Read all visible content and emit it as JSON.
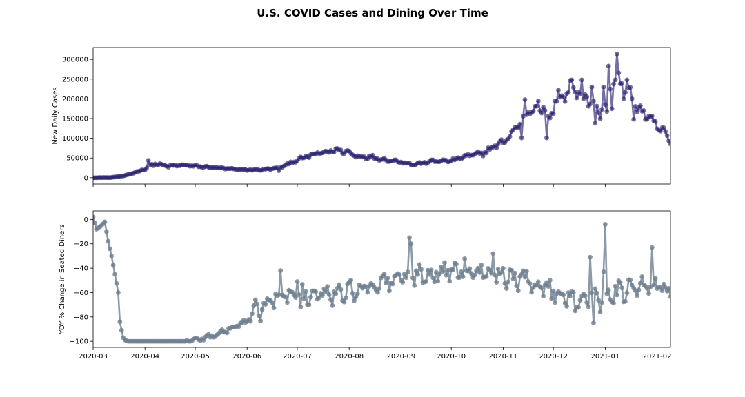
{
  "figure": {
    "title": "U.S. COVID Cases and Dining Over Time"
  },
  "chart_data": [
    {
      "type": "line",
      "ylabel": "New Daily Cases",
      "xlim": [
        "2020-03-01",
        "2021-02-09"
      ],
      "ylim": [
        -16000,
        330000
      ],
      "yticks": [
        0,
        50000,
        100000,
        150000,
        200000,
        250000,
        300000
      ],
      "ytick_labels": [
        "0",
        "50000",
        "100000",
        "150000",
        "200000",
        "250000",
        "300000"
      ],
      "xticks": [
        "2020-03-01",
        "2020-04-01",
        "2020-05-01",
        "2020-06-01",
        "2020-07-01",
        "2020-08-01",
        "2020-09-01",
        "2020-10-01",
        "2020-11-01",
        "2020-12-01",
        "2021-01-01",
        "2021-02-01"
      ],
      "show_xtick_labels": false,
      "series": [
        {
          "color": "#2b2470",
          "alpha": 0.65,
          "marker": "circle",
          "anchors": [
            [
              "2020-03-01",
              0
            ],
            [
              "2020-03-12",
              600
            ],
            [
              "2020-03-20",
              5000
            ],
            [
              "2020-03-25",
              12000
            ],
            [
              "2020-04-01",
              22000
            ],
            [
              "2020-04-04",
              30000
            ],
            [
              "2020-04-07",
              35000
            ],
            [
              "2020-04-10",
              33000
            ],
            [
              "2020-04-15",
              29000
            ],
            [
              "2020-04-24",
              32000
            ],
            [
              "2020-05-01",
              29000
            ],
            [
              "2020-05-12",
              26000
            ],
            [
              "2020-05-25",
              21000
            ],
            [
              "2020-06-01",
              20000
            ],
            [
              "2020-06-08",
              20000
            ],
            [
              "2020-06-15",
              22000
            ],
            [
              "2020-06-22",
              28000
            ],
            [
              "2020-06-26",
              36000
            ],
            [
              "2020-07-01",
              45000
            ],
            [
              "2020-07-10",
              58000
            ],
            [
              "2020-07-19",
              66000
            ],
            [
              "2020-07-24",
              70000
            ],
            [
              "2020-07-31",
              66000
            ],
            [
              "2020-08-05",
              55000
            ],
            [
              "2020-08-15",
              52000
            ],
            [
              "2020-08-25",
              44000
            ],
            [
              "2020-09-01",
              41000
            ],
            [
              "2020-09-08",
              33000
            ],
            [
              "2020-09-20",
              42000
            ],
            [
              "2020-10-01",
              43000
            ],
            [
              "2020-10-10",
              55000
            ],
            [
              "2020-10-20",
              62000
            ],
            [
              "2020-10-26",
              78000
            ],
            [
              "2020-10-31",
              88000
            ],
            [
              "2020-11-04",
              102000
            ],
            [
              "2020-11-08",
              122000
            ],
            [
              "2020-11-13",
              158000
            ],
            [
              "2020-11-17",
              172000
            ],
            [
              "2020-11-20",
              183000
            ],
            [
              "2020-11-25",
              175000
            ],
            [
              "2020-11-27",
              152000
            ],
            [
              "2020-11-30",
              158000
            ],
            [
              "2020-12-03",
              205000
            ],
            [
              "2020-12-08",
              208000
            ],
            [
              "2020-12-11",
              228000
            ],
            [
              "2020-12-16",
              225000
            ],
            [
              "2020-12-19",
              200000
            ],
            [
              "2020-12-22",
              198000
            ],
            [
              "2020-12-24",
              190000
            ],
            [
              "2020-12-28",
              162000
            ],
            [
              "2021-01-01",
              180000
            ],
            [
              "2021-01-03",
              215000
            ],
            [
              "2021-01-06",
              235000
            ],
            [
              "2021-01-08",
              260000
            ],
            [
              "2021-01-10",
              230000
            ],
            [
              "2021-01-14",
              225000
            ],
            [
              "2021-01-18",
              195000
            ],
            [
              "2021-01-21",
              180000
            ],
            [
              "2021-01-24",
              160000
            ],
            [
              "2021-01-28",
              148000
            ],
            [
              "2021-02-01",
              128000
            ],
            [
              "2021-02-05",
              118000
            ],
            [
              "2021-02-09",
              88000
            ]
          ],
          "spikes": [
            [
              "2020-04-03",
              44000
            ],
            [
              "2020-06-20",
              18000
            ],
            [
              "2020-11-12",
              101000
            ],
            [
              "2020-11-14",
              198000
            ],
            [
              "2020-11-27",
              101000
            ],
            [
              "2020-12-01",
              162000
            ],
            [
              "2020-12-04",
              222000
            ],
            [
              "2020-12-12",
              248000
            ],
            [
              "2020-12-18",
              248000
            ],
            [
              "2020-12-24",
              230000
            ],
            [
              "2020-12-26",
              138000
            ],
            [
              "2020-12-31",
              230000
            ],
            [
              "2021-01-02",
              168000
            ],
            [
              "2021-01-03",
              283000
            ],
            [
              "2021-01-05",
              175000
            ],
            [
              "2021-01-07",
              248000
            ],
            [
              "2021-01-08",
              314000
            ],
            [
              "2021-01-12",
              200000
            ],
            [
              "2021-01-14",
              248000
            ],
            [
              "2021-01-18",
              148000
            ]
          ]
        }
      ]
    },
    {
      "type": "line",
      "ylabel": "YOY % Change in Seated Diners",
      "xlim": [
        "2020-03-01",
        "2021-02-09"
      ],
      "ylim": [
        -105,
        7
      ],
      "yticks": [
        0,
        -20,
        -40,
        -60,
        -80,
        -100
      ],
      "ytick_labels": [
        "0",
        "−20",
        "−40",
        "−60",
        "−80",
        "−100"
      ],
      "xticks": [
        "2020-03-01",
        "2020-04-01",
        "2020-05-01",
        "2020-06-01",
        "2020-07-01",
        "2020-08-01",
        "2020-09-01",
        "2020-10-01",
        "2020-11-01",
        "2020-12-01",
        "2021-01-01",
        "2021-02-01"
      ],
      "xtick_labels": [
        "2020-03",
        "2020-04",
        "2020-05",
        "2020-06",
        "2020-07",
        "2020-08",
        "2020-09",
        "2020-10",
        "2020-11",
        "2020-12",
        "2021-01",
        "2021-02"
      ],
      "series": [
        {
          "color": "#6f7f90",
          "alpha": 0.8,
          "marker": "circle",
          "anchors": [
            [
              "2020-03-01",
              2
            ],
            [
              "2020-03-03",
              -8
            ],
            [
              "2020-03-06",
              -5
            ],
            [
              "2020-03-08",
              -2
            ],
            [
              "2020-03-10",
              -18
            ],
            [
              "2020-03-12",
              -30
            ],
            [
              "2020-03-14",
              -45
            ],
            [
              "2020-03-16",
              -60
            ],
            [
              "2020-03-17",
              -84
            ],
            [
              "2020-03-18",
              -91
            ],
            [
              "2020-03-19",
              -97
            ],
            [
              "2020-03-20",
              -99
            ],
            [
              "2020-03-22",
              -100
            ],
            [
              "2020-04-25",
              -100
            ],
            [
              "2020-05-01",
              -99
            ],
            [
              "2020-05-10",
              -96
            ],
            [
              "2020-05-20",
              -91
            ],
            [
              "2020-06-01",
              -83
            ],
            [
              "2020-06-06",
              -76
            ],
            [
              "2020-06-12",
              -70
            ],
            [
              "2020-06-19",
              -64
            ],
            [
              "2020-06-25",
              -63
            ],
            [
              "2020-07-03",
              -62
            ],
            [
              "2020-07-15",
              -62
            ],
            [
              "2020-07-25",
              -62
            ],
            [
              "2020-08-01",
              -58
            ],
            [
              "2020-08-10",
              -55
            ],
            [
              "2020-08-20",
              -52
            ],
            [
              "2020-09-01",
              -48
            ],
            [
              "2020-09-10",
              -45
            ],
            [
              "2020-09-20",
              -44
            ],
            [
              "2020-10-01",
              -42
            ],
            [
              "2020-10-10",
              -41
            ],
            [
              "2020-10-20",
              -40
            ],
            [
              "2020-10-31",
              -45
            ],
            [
              "2020-11-05",
              -47
            ],
            [
              "2020-11-15",
              -50
            ],
            [
              "2020-11-25",
              -56
            ],
            [
              "2020-12-01",
              -58
            ],
            [
              "2020-12-06",
              -64
            ],
            [
              "2020-12-12",
              -62
            ],
            [
              "2020-12-18",
              -66
            ],
            [
              "2020-12-24",
              -65
            ],
            [
              "2021-01-01",
              -58
            ],
            [
              "2021-01-08",
              -60
            ],
            [
              "2021-01-15",
              -58
            ],
            [
              "2021-01-22",
              -56
            ],
            [
              "2021-02-01",
              -55
            ],
            [
              "2021-02-09",
              -57
            ]
          ],
          "spikes": [
            [
              "2020-06-21",
              -42
            ],
            [
              "2020-07-01",
              -51
            ],
            [
              "2020-07-03",
              -72
            ],
            [
              "2020-09-06",
              -15
            ],
            [
              "2020-09-07",
              -20
            ],
            [
              "2020-10-26",
              -28
            ],
            [
              "2020-12-14",
              -75
            ],
            [
              "2020-12-23",
              -31
            ],
            [
              "2020-12-25",
              -85
            ],
            [
              "2020-12-29",
              -76
            ],
            [
              "2020-12-31",
              -43
            ],
            [
              "2021-01-01",
              -4
            ],
            [
              "2021-01-02",
              -61
            ],
            [
              "2021-01-29",
              -23
            ]
          ]
        }
      ]
    }
  ]
}
